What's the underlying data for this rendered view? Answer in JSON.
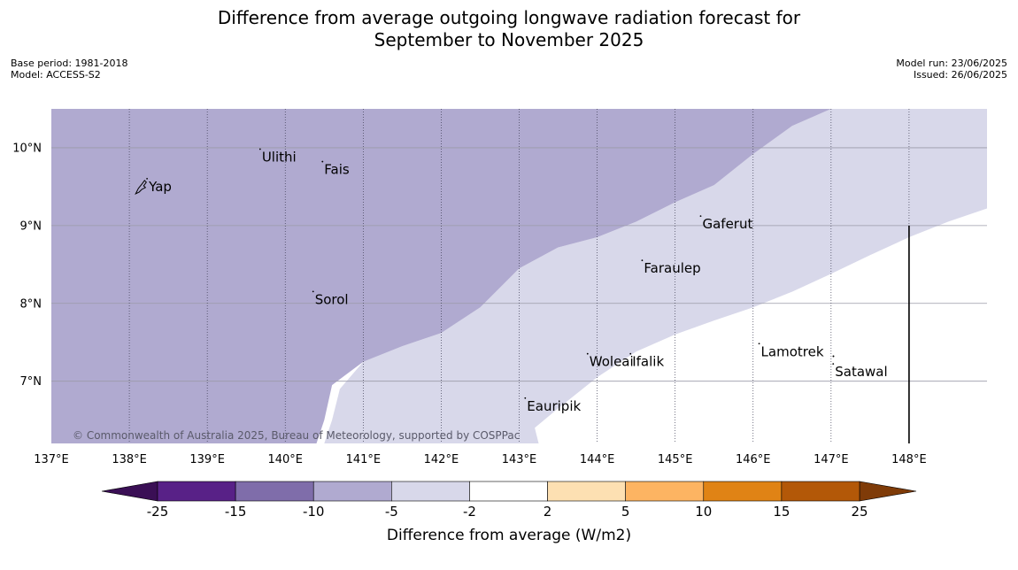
{
  "title": {
    "line1": "Difference from average outgoing longwave radiation forecast for",
    "line2": "September to November 2025"
  },
  "meta": {
    "base_period": "Base period: 1981-2018",
    "model": "Model: ACCESS-S2",
    "model_run": "Model run: 23/06/2025",
    "issued": "Issued: 26/06/2025"
  },
  "credit": "© Commonwealth of Australia 2025, Bureau of Meteorology, supported by COSPPac",
  "map": {
    "lon_range": [
      137.0,
      149.0
    ],
    "lat_range": [
      6.2,
      10.5
    ],
    "lon_ticks": [
      {
        "value": 137,
        "label": "137°E"
      },
      {
        "value": 138,
        "label": "138°E"
      },
      {
        "value": 139,
        "label": "139°E"
      },
      {
        "value": 140,
        "label": "140°E"
      },
      {
        "value": 141,
        "label": "141°E"
      },
      {
        "value": 142,
        "label": "142°E"
      },
      {
        "value": 143,
        "label": "143°E"
      },
      {
        "value": 144,
        "label": "144°E"
      },
      {
        "value": 145,
        "label": "145°E"
      },
      {
        "value": 146,
        "label": "146°E"
      },
      {
        "value": 147,
        "label": "147°E"
      },
      {
        "value": 148,
        "label": "148°E"
      }
    ],
    "lat_ticks": [
      {
        "value": 10,
        "label": "10°N"
      },
      {
        "value": 9,
        "label": "9°N"
      },
      {
        "value": 8,
        "label": "8°N"
      },
      {
        "value": 7,
        "label": "7°N"
      }
    ],
    "colors": {
      "dark_purple_band": "#b0aad0",
      "light_purple_band": "#d8d8ea",
      "no_change": "#ffffff",
      "gridline_lat": "#9a9aa8",
      "gridline_lon": "#3a3a50"
    },
    "places": [
      {
        "name": "Yap",
        "lon": 138.25,
        "lat": 9.5
      },
      {
        "name": "Ulithi",
        "lon": 139.7,
        "lat": 9.88
      },
      {
        "name": "Fais",
        "lon": 140.5,
        "lat": 9.72
      },
      {
        "name": "Gaferut",
        "lon": 145.35,
        "lat": 9.02
      },
      {
        "name": "Faraulep",
        "lon": 144.6,
        "lat": 8.45
      },
      {
        "name": "Sorol",
        "lon": 140.38,
        "lat": 8.05
      },
      {
        "name": "Woleai",
        "lon": 143.9,
        "lat": 7.25
      },
      {
        "name": "Ifalik",
        "lon": 144.45,
        "lat": 7.25
      },
      {
        "name": "Lamotrek",
        "lon": 146.1,
        "lat": 7.38
      },
      {
        "name": "Satawal",
        "lon": 147.05,
        "lat": 7.12
      },
      {
        "name": "Eauripik",
        "lon": 143.1,
        "lat": 6.68
      }
    ],
    "boundary_line": {
      "lon": 148.0,
      "lat_top": 9.0,
      "lat_bottom": 6.2
    }
  },
  "colorbar": {
    "label": "Difference from average (W/m2)",
    "bins": [
      {
        "color": "#582187"
      },
      {
        "color": "#7f6daa"
      },
      {
        "color": "#b0aad0"
      },
      {
        "color": "#d8d8ea"
      },
      {
        "color": "#ffffff"
      },
      {
        "color": "#fde0b2"
      },
      {
        "color": "#fdb462"
      },
      {
        "color": "#e08315"
      },
      {
        "color": "#b35808"
      }
    ],
    "extend_low_color": "#3a0f55",
    "extend_high_color": "#7f3b08",
    "tick_labels": [
      "-25",
      "-15",
      "-10",
      "-5",
      "-2",
      "2",
      "5",
      "10",
      "15",
      "25"
    ]
  }
}
